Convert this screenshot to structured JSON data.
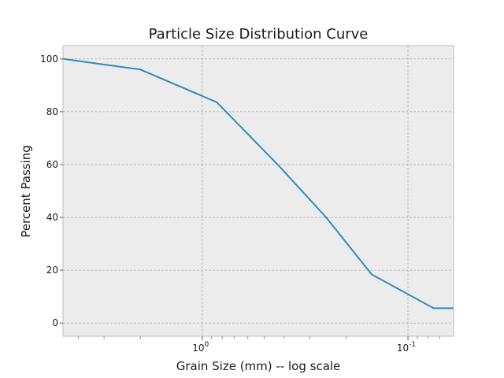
{
  "chart_data": {
    "type": "line",
    "title": "Particle Size Distribution Curve",
    "xlabel": "Grain Size (mm) -- log scale",
    "ylabel": "Percent Passing",
    "x_scale": "log",
    "x_reversed": true,
    "xlim": [
      4.75,
      0.06
    ],
    "ylim": [
      -5,
      105
    ],
    "grid": true,
    "background_color": "#ececec",
    "line_color": "#348abd",
    "x": [
      4.75,
      2.0,
      0.85,
      0.425,
      0.25,
      0.15,
      0.075,
      0.06
    ],
    "y": [
      100,
      96,
      83.6,
      59.6,
      40,
      18.4,
      5.6,
      5.6
    ],
    "x_ticks": [
      {
        "value": 1,
        "base": "10",
        "exponent": "0"
      },
      {
        "value": 0.1,
        "base": "10",
        "exponent": "-1"
      }
    ],
    "y_ticks": [
      0,
      20,
      40,
      60,
      80,
      100
    ]
  }
}
